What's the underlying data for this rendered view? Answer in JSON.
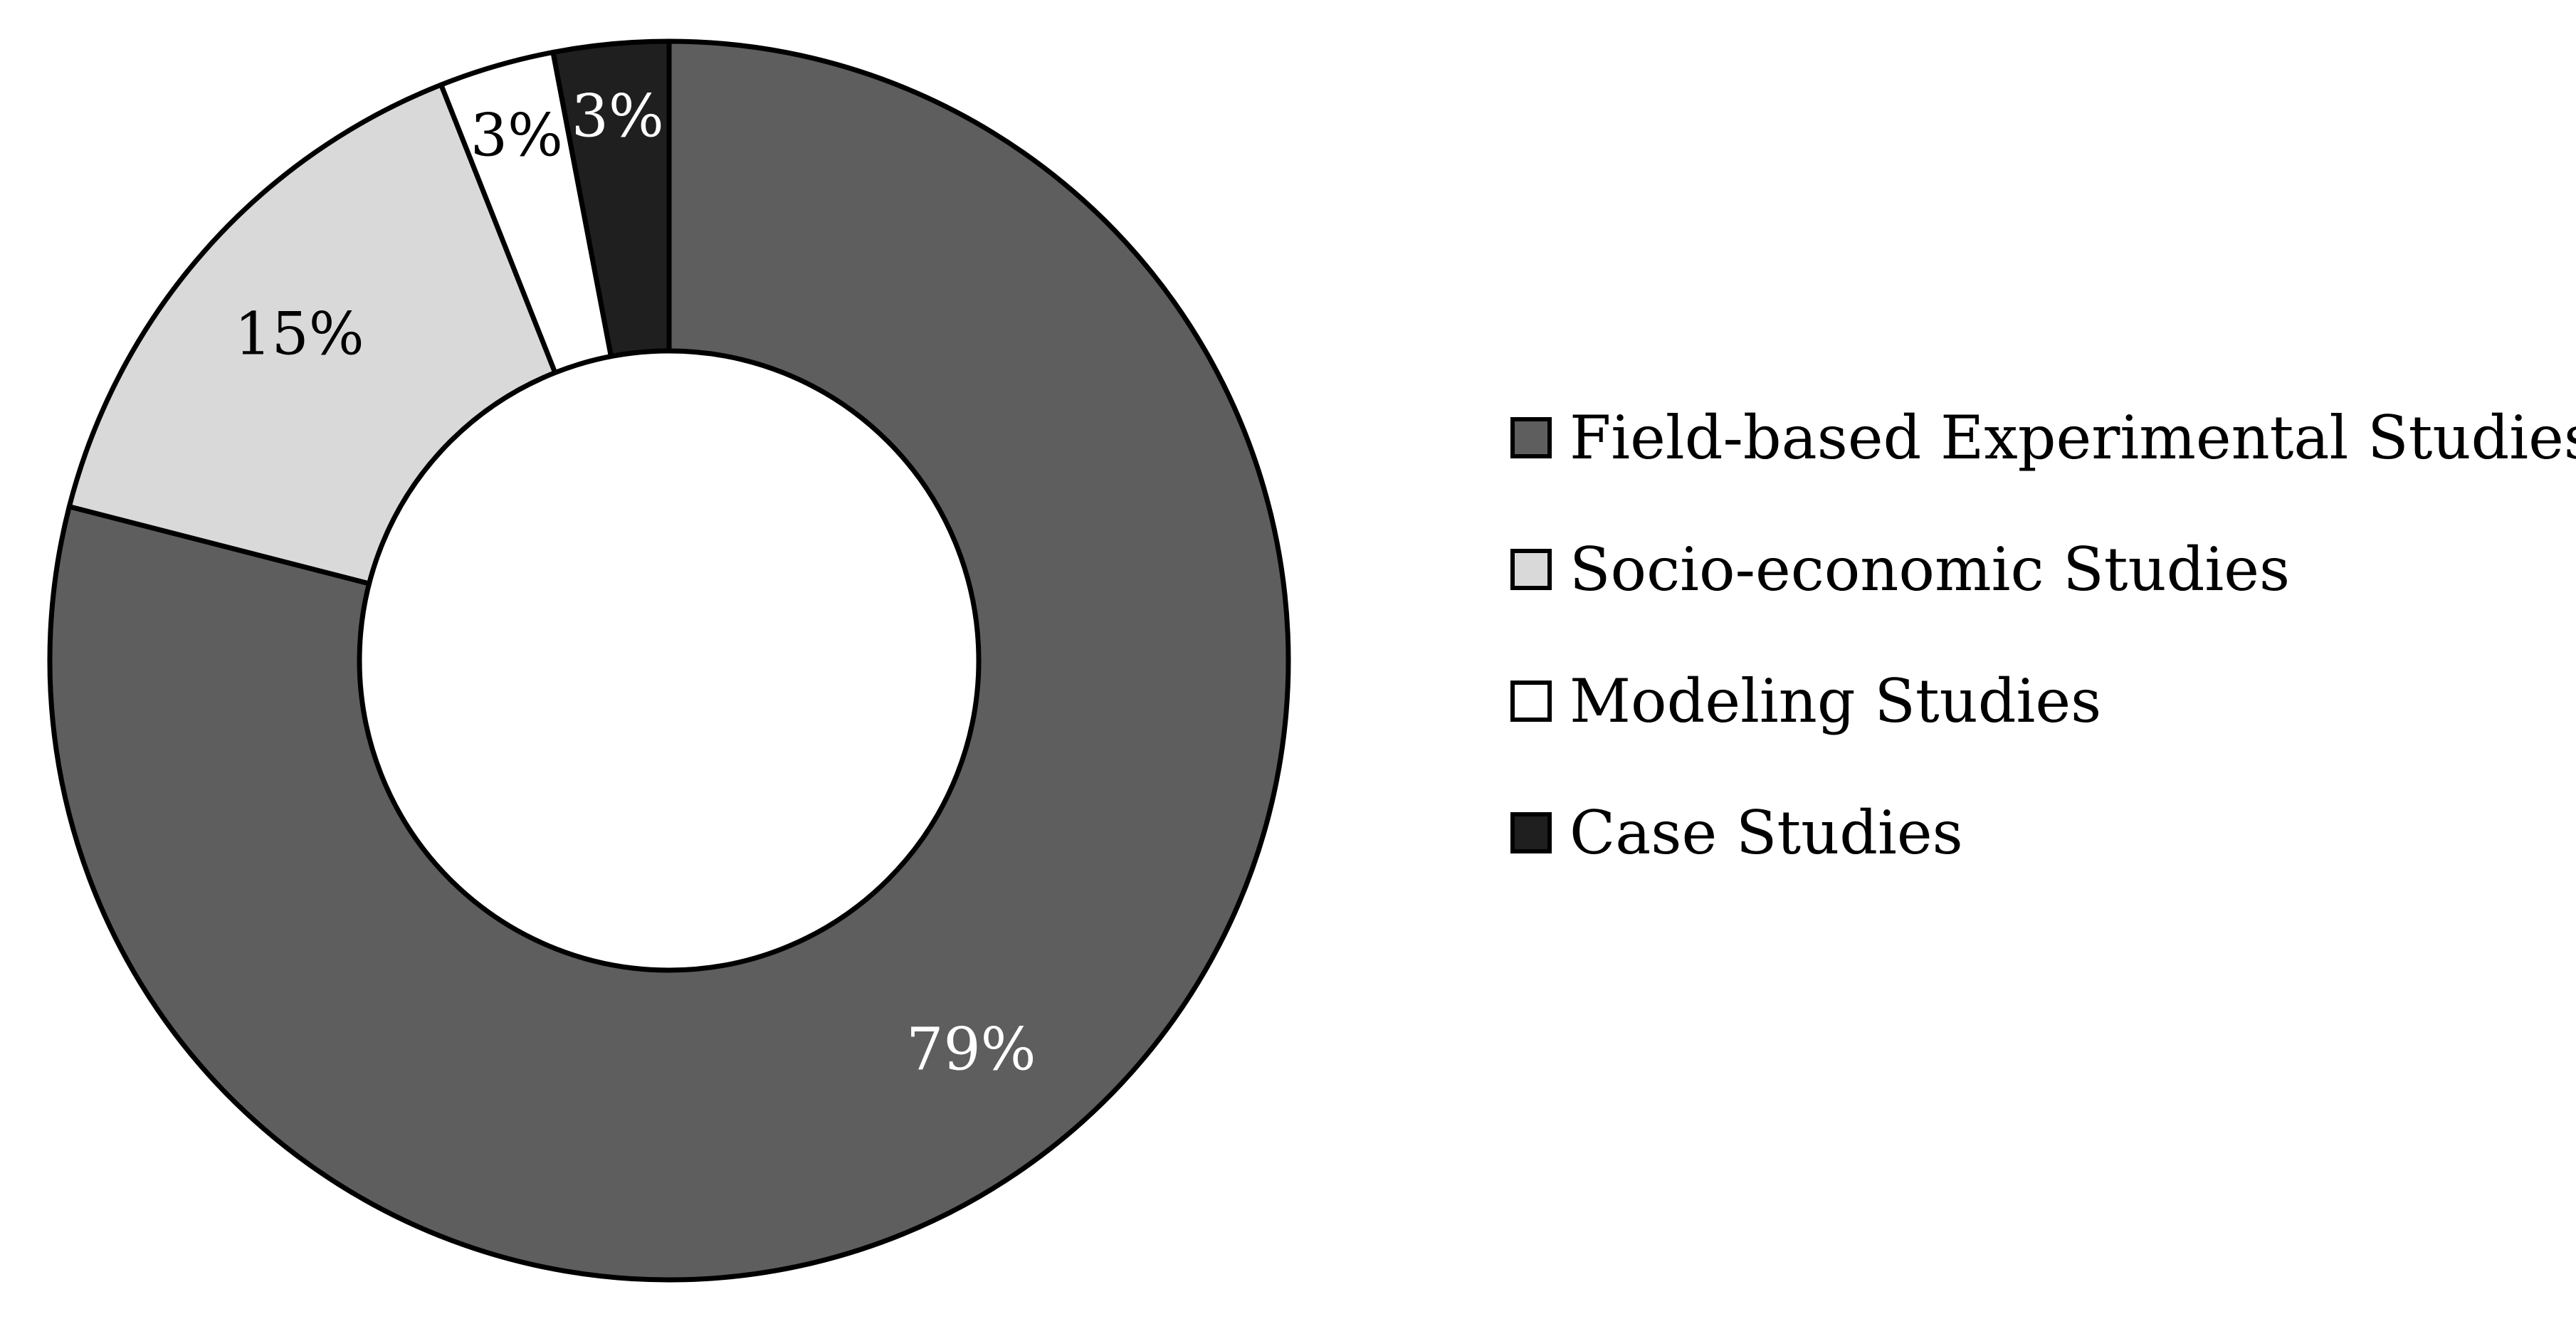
{
  "chart_data": {
    "type": "pie",
    "donut": true,
    "title": "",
    "legend": "right",
    "categories": [
      "Field-based Experimental Studies",
      "Socio-economic Studies",
      "Modeling Studies",
      "Case Studies"
    ],
    "values": [
      79,
      15,
      3,
      3
    ],
    "labels": [
      "79%",
      "15%",
      "3%",
      "3%"
    ],
    "colors": [
      "#5e5e5e",
      "#d9d9d9",
      "#ffffff",
      "#1f1f1f"
    ],
    "label_colors": [
      "#ffffff",
      "#000000",
      "#000000",
      "#ffffff"
    ]
  }
}
